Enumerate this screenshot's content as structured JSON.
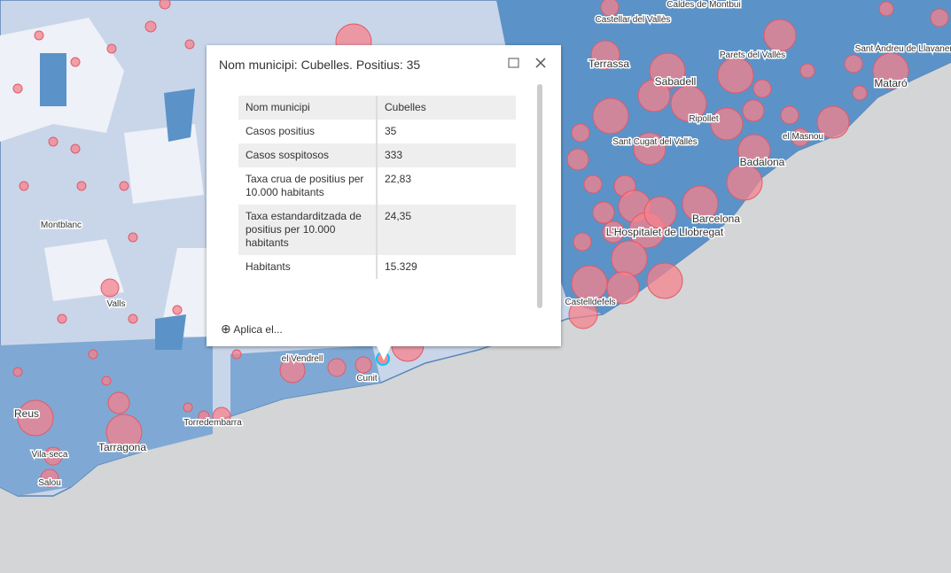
{
  "popup": {
    "title": "Nom municipi: Cubelles. Positius: 35",
    "action": "Aplica el...",
    "table": {
      "rows": [
        [
          "Nom municipi",
          "Cubelles"
        ],
        [
          "Casos positius",
          "35"
        ],
        [
          "Casos sospitosos",
          "333"
        ],
        [
          "Taxa crua de positius per 10.000 habitants",
          "22,83"
        ],
        [
          "Taxa estandarditzada de positius per 10.000 habitants",
          "24,35"
        ],
        [
          "Habitants",
          "15.329"
        ]
      ]
    }
  },
  "places": [
    "Caldes de Montbui",
    "Castellar del Vallès",
    "Terrassa",
    "Sabadell",
    "Parets del Vallès",
    "Sant Andreu de Llavaneres",
    "Mataró",
    "Ripollet",
    "Sant Cugat del Vallès",
    "el Masnou",
    "Badalona",
    "Barcelona",
    "L'Hospitalet de Llobregat",
    "Castelldefels",
    "Montblanc",
    "Valls",
    "el Vendrell",
    "Cunit",
    "Reus",
    "Torredembarra",
    "Tarragona",
    "Vila-seca",
    "Salou"
  ]
}
